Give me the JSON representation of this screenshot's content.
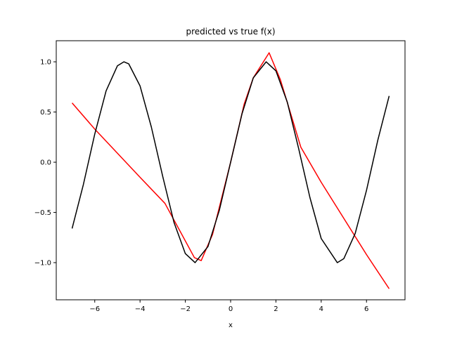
{
  "chart_data": {
    "type": "line",
    "title": "predicted vs true f(x)",
    "xlabel": "x",
    "ylabel": "",
    "xlim": [
      -7.7,
      7.7
    ],
    "ylim": [
      -1.37,
      1.21
    ],
    "xticks": [
      -6,
      -4,
      -2,
      0,
      2,
      4,
      6
    ],
    "xtick_labels": [
      "−6",
      "−4",
      "−2",
      "0",
      "2",
      "4",
      "6"
    ],
    "yticks": [
      -1.0,
      -0.5,
      0.0,
      0.5,
      1.0
    ],
    "ytick_labels": [
      "−1.0",
      "−0.5",
      "0.0",
      "0.5",
      "1.0"
    ],
    "grid": false,
    "legend": "none",
    "series": [
      {
        "color": "#ff0000",
        "x": [
          -7.0,
          -6.0,
          -4.0,
          -2.9,
          -1.6,
          -1.3,
          -0.8,
          0.0,
          0.6,
          1.0,
          1.7,
          2.2,
          3.1,
          4.0,
          5.0,
          6.0,
          7.0
        ],
        "y": [
          0.59,
          0.33,
          -0.15,
          -0.41,
          -0.95,
          -0.98,
          -0.72,
          0.0,
          0.58,
          0.84,
          1.09,
          0.82,
          0.15,
          -0.2,
          -0.56,
          -0.92,
          -1.26
        ]
      },
      {
        "color": "#000000",
        "x": [
          -7.0,
          -6.5,
          -6.0,
          -5.5,
          -5.0,
          -4.71,
          -4.5,
          -4.0,
          -3.5,
          -3.0,
          -2.5,
          -2.0,
          -1.57,
          -1.0,
          -0.5,
          0.0,
          0.5,
          1.0,
          1.57,
          2.0,
          2.5,
          3.0,
          3.5,
          4.0,
          4.71,
          5.0,
          5.5,
          6.0,
          6.5,
          7.0
        ],
        "y": [
          -0.66,
          -0.22,
          0.28,
          0.71,
          0.96,
          1.0,
          0.98,
          0.76,
          0.35,
          -0.14,
          -0.6,
          -0.91,
          -1.0,
          -0.84,
          -0.48,
          0.0,
          0.48,
          0.84,
          1.0,
          0.91,
          0.6,
          0.14,
          -0.35,
          -0.76,
          -1.0,
          -0.96,
          -0.71,
          -0.28,
          0.22,
          0.66
        ]
      }
    ]
  }
}
